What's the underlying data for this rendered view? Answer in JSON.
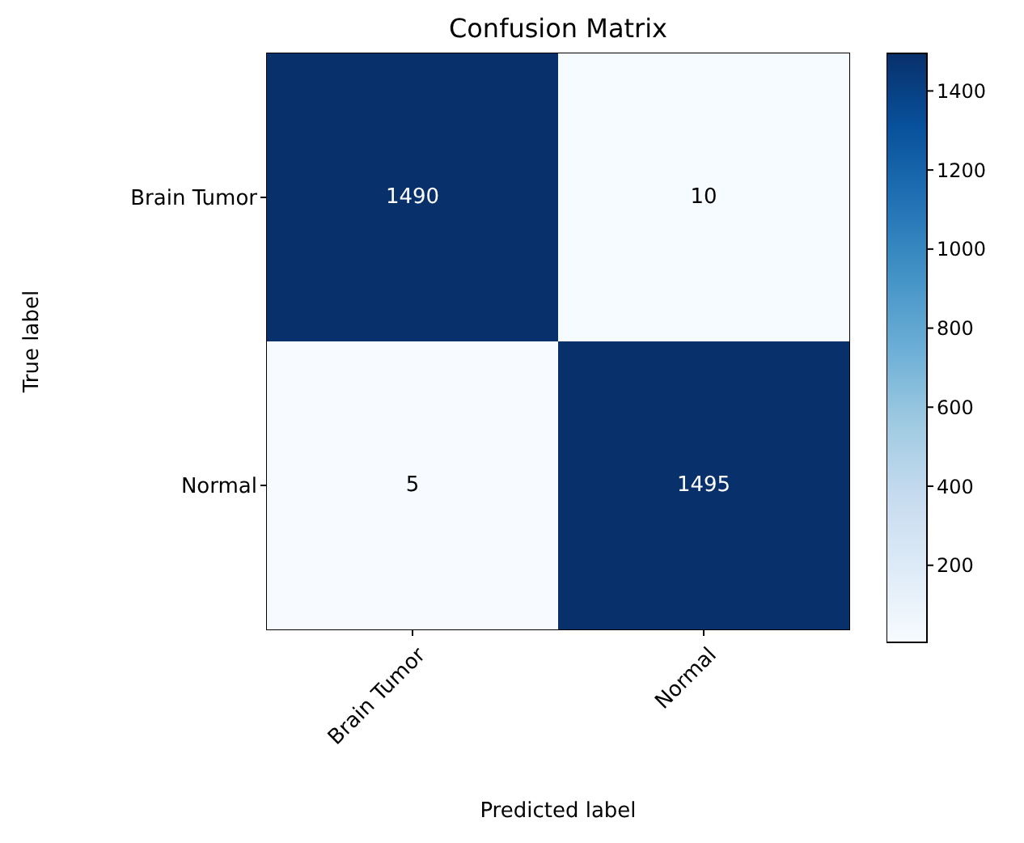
{
  "chart_data": {
    "type": "heatmap",
    "title": "Confusion Matrix",
    "xlabel": "Predicted label",
    "ylabel": "True label",
    "categories": [
      "Brain Tumor",
      "Normal"
    ],
    "y_categories": [
      "Brain Tumor",
      "Normal"
    ],
    "cells": [
      [
        1490,
        10
      ],
      [
        5,
        1495
      ]
    ],
    "data_labels": true,
    "clim": [
      5,
      1495
    ],
    "cticks": [
      200,
      400,
      600,
      800,
      1000,
      1200,
      1400
    ]
  }
}
